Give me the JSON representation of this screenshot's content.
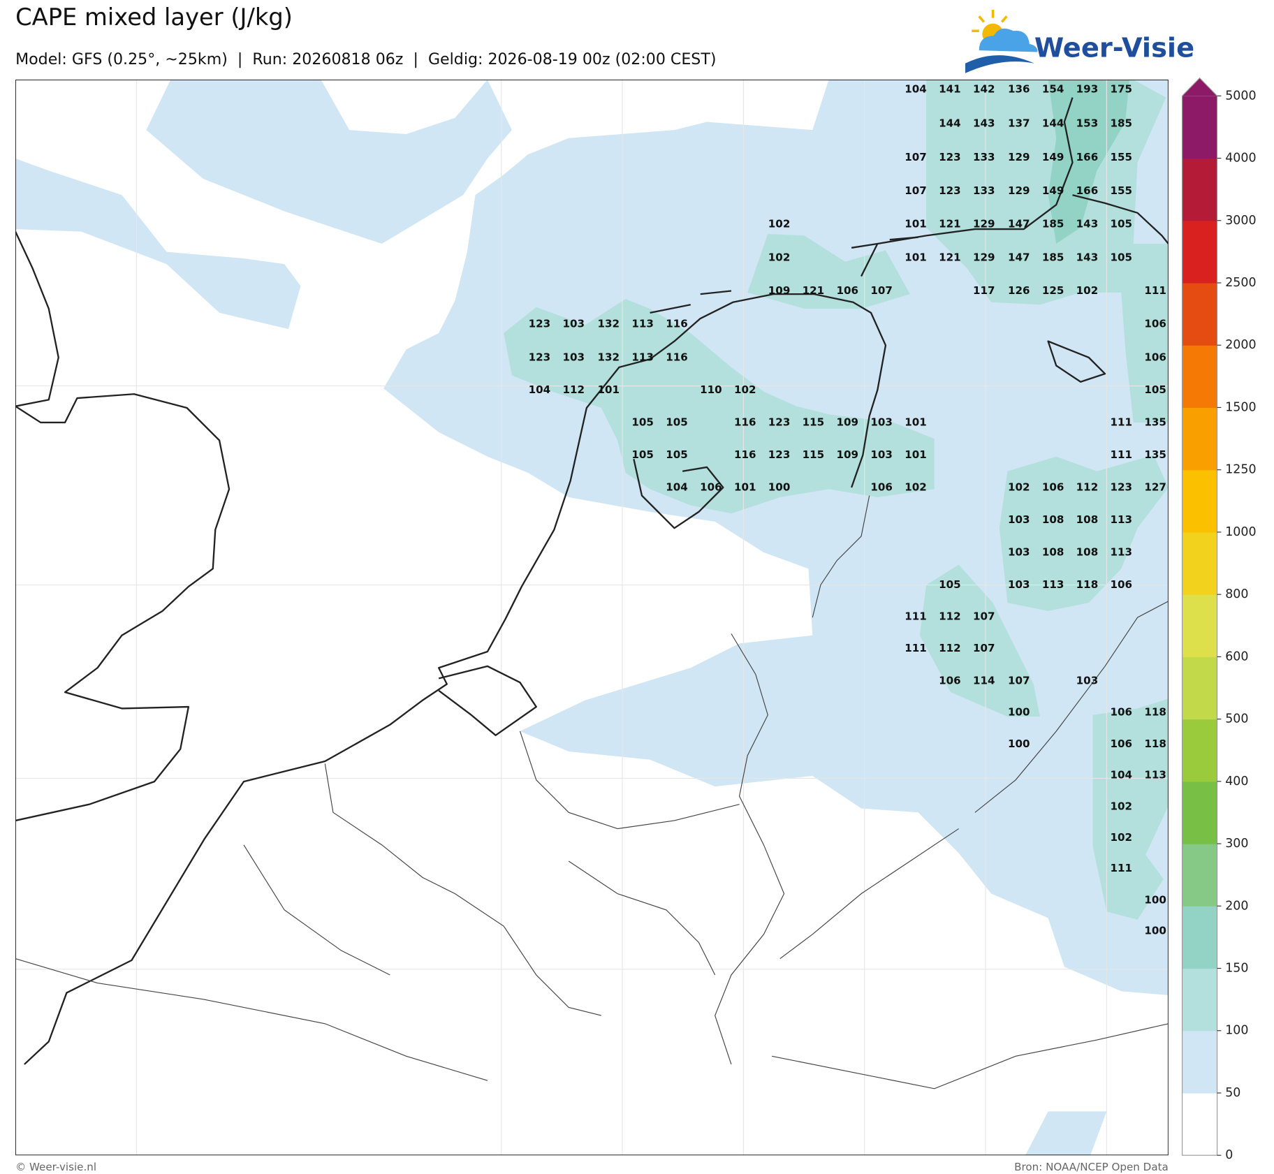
{
  "header": {
    "title": "CAPE mixed layer (J/kg)",
    "subtitle": "Model: GFS (0.25°, ~25km)  |  Run: 20260818 06z  |  Geldig: 2026-08-19 00z (02:00 CEST)"
  },
  "logo": {
    "text": "Weer-Visie"
  },
  "map": {
    "labels": [
      [
        null,
        null,
        null,
        null,
        null,
        null,
        null,
        null,
        null,
        null,
        null,
        104,
        141,
        142,
        136,
        154,
        193,
        175,
        null
      ],
      [
        null,
        null,
        null,
        null,
        null,
        null,
        null,
        null,
        null,
        null,
        null,
        null,
        144,
        143,
        137,
        144,
        153,
        185,
        null
      ],
      [
        null,
        null,
        null,
        null,
        null,
        null,
        null,
        null,
        null,
        null,
        null,
        107,
        123,
        133,
        129,
        149,
        166,
        155,
        null
      ],
      [
        null,
        null,
        null,
        null,
        null,
        null,
        null,
        null,
        null,
        null,
        null,
        107,
        123,
        133,
        129,
        149,
        166,
        155,
        null
      ],
      [
        null,
        null,
        null,
        null,
        null,
        null,
        null,
        102,
        null,
        null,
        null,
        101,
        121,
        129,
        147,
        185,
        143,
        105,
        null
      ],
      [
        null,
        null,
        null,
        null,
        null,
        null,
        null,
        102,
        null,
        null,
        null,
        101,
        121,
        129,
        147,
        185,
        143,
        105,
        null
      ],
      [
        null,
        null,
        null,
        null,
        null,
        null,
        null,
        109,
        121,
        106,
        107,
        null,
        null,
        117,
        126,
        125,
        102,
        null,
        111
      ],
      [
        123,
        103,
        132,
        113,
        116,
        null,
        null,
        null,
        null,
        null,
        null,
        null,
        null,
        null,
        null,
        null,
        null,
        null,
        106
      ],
      [
        123,
        103,
        132,
        113,
        116,
        null,
        null,
        null,
        null,
        null,
        null,
        null,
        null,
        null,
        null,
        null,
        null,
        null,
        106
      ],
      [
        104,
        112,
        101,
        null,
        null,
        110,
        102,
        null,
        null,
        null,
        null,
        null,
        null,
        null,
        null,
        null,
        null,
        null,
        105
      ],
      [
        null,
        null,
        null,
        105,
        105,
        null,
        116,
        123,
        115,
        109,
        103,
        101,
        null,
        null,
        null,
        null,
        null,
        111,
        135
      ],
      [
        null,
        null,
        null,
        105,
        105,
        null,
        116,
        123,
        115,
        109,
        103,
        101,
        null,
        null,
        null,
        null,
        null,
        111,
        135
      ],
      [
        null,
        null,
        null,
        null,
        104,
        106,
        101,
        100,
        null,
        null,
        106,
        102,
        null,
        null,
        102,
        106,
        112,
        123,
        127
      ],
      [
        null,
        null,
        null,
        null,
        null,
        null,
        null,
        null,
        null,
        null,
        null,
        null,
        null,
        null,
        103,
        108,
        108,
        113,
        null
      ],
      [
        null,
        null,
        null,
        null,
        null,
        null,
        null,
        null,
        null,
        null,
        null,
        null,
        null,
        null,
        103,
        108,
        108,
        113,
        null
      ],
      [
        null,
        null,
        null,
        null,
        null,
        null,
        null,
        null,
        null,
        null,
        null,
        null,
        105,
        null,
        103,
        113,
        118,
        106,
        null
      ],
      [
        null,
        null,
        null,
        null,
        null,
        null,
        null,
        null,
        null,
        null,
        null,
        111,
        112,
        107,
        null,
        null,
        null,
        null,
        null
      ],
      [
        null,
        null,
        null,
        null,
        null,
        null,
        null,
        null,
        null,
        null,
        null,
        111,
        112,
        107,
        null,
        null,
        null,
        null,
        null
      ],
      [
        null,
        null,
        null,
        null,
        null,
        null,
        null,
        null,
        null,
        null,
        null,
        null,
        106,
        114,
        107,
        null,
        103,
        null,
        null
      ],
      [
        null,
        null,
        null,
        null,
        null,
        null,
        null,
        null,
        null,
        null,
        null,
        null,
        null,
        null,
        100,
        null,
        null,
        106,
        118
      ],
      [
        null,
        null,
        null,
        null,
        null,
        null,
        null,
        null,
        null,
        null,
        null,
        null,
        null,
        null,
        100,
        null,
        null,
        106,
        118
      ],
      [
        null,
        null,
        null,
        null,
        null,
        null,
        null,
        null,
        null,
        null,
        null,
        null,
        null,
        null,
        null,
        null,
        null,
        104,
        113
      ],
      [
        null,
        null,
        null,
        null,
        null,
        null,
        null,
        null,
        null,
        null,
        null,
        null,
        null,
        null,
        null,
        null,
        null,
        102,
        null
      ],
      [
        null,
        null,
        null,
        null,
        null,
        null,
        null,
        null,
        null,
        null,
        null,
        null,
        null,
        null,
        null,
        null,
        null,
        102,
        null
      ],
      [
        null,
        null,
        null,
        null,
        null,
        null,
        null,
        null,
        null,
        null,
        null,
        null,
        null,
        null,
        null,
        null,
        null,
        111,
        null
      ],
      [
        null,
        null,
        null,
        null,
        null,
        null,
        null,
        null,
        null,
        null,
        null,
        null,
        null,
        null,
        null,
        null,
        null,
        null,
        100
      ],
      [
        null,
        null,
        null,
        null,
        null,
        null,
        null,
        null,
        null,
        null,
        null,
        null,
        null,
        null,
        null,
        null,
        null,
        null,
        100
      ]
    ]
  },
  "colorbar": {
    "ticks": [
      0,
      50,
      100,
      150,
      200,
      300,
      400,
      500,
      600,
      800,
      1000,
      1250,
      1500,
      2000,
      2500,
      3000,
      4000,
      5000
    ],
    "colors": [
      "#ffffff",
      "#d0e6f5",
      "#b3e0dc",
      "#93d3c6",
      "#86c987",
      "#77bf45",
      "#9acb3c",
      "#c2d94a",
      "#dde04a",
      "#f2d21c",
      "#fbc000",
      "#f99f00",
      "#f47a05",
      "#e44c11",
      "#d9221f",
      "#b31b37",
      "#8c1a66"
    ]
  },
  "footer": {
    "left": "© Weer-visie.nl",
    "right": "Bron: NOAA/NCEP Open Data"
  }
}
